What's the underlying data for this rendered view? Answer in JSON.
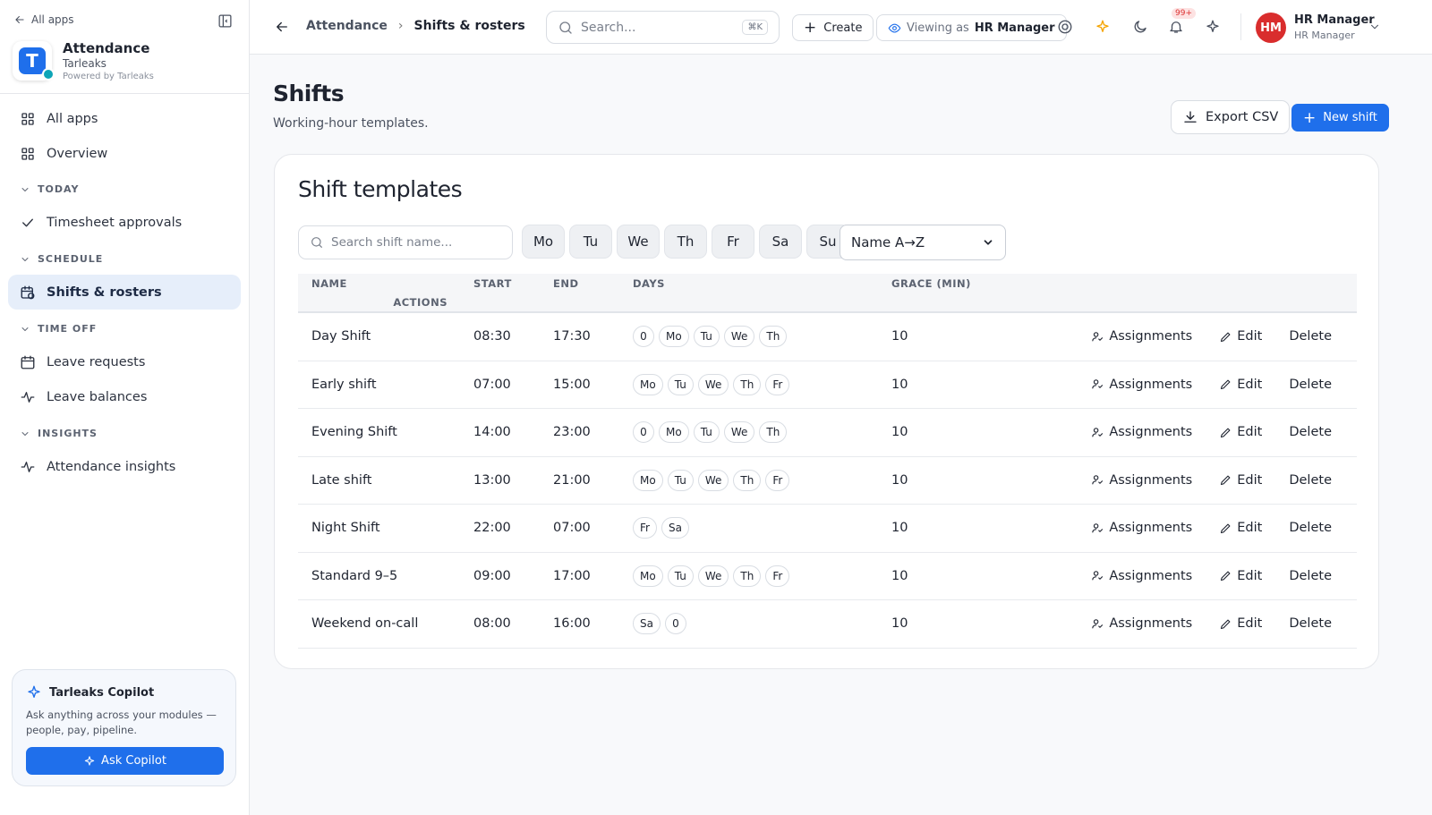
{
  "sidebar": {
    "back": "All apps",
    "app": {
      "name": "Attendance",
      "org": "Tarleaks",
      "powered": "Powered by Tarleaks"
    },
    "nav": [
      "All apps",
      "Overview"
    ],
    "sections": [
      {
        "title": "TODAY",
        "items": [
          "Timesheet approvals"
        ]
      },
      {
        "title": "SCHEDULE",
        "items": [
          "Shifts & rosters"
        ]
      },
      {
        "title": "TIME OFF",
        "items": [
          "Leave requests",
          "Leave balances"
        ]
      },
      {
        "title": "INSIGHTS",
        "items": [
          "Attendance insights"
        ]
      }
    ],
    "copilot": {
      "title": "Tarleaks Copilot",
      "text": "Ask anything across your modules — people, pay, pipeline.",
      "button": "Ask Copilot"
    }
  },
  "topbar": {
    "breadcrumb": [
      "Attendance",
      "Shifts & rosters"
    ],
    "search": "Search...",
    "shortcut": "⌘K",
    "create": "Create",
    "viewing_label": "Viewing as",
    "viewing_role": "HR Manager",
    "notifications": "99+",
    "user": {
      "initials": "HM",
      "name": "HR Manager",
      "role": "HR Manager"
    }
  },
  "page": {
    "title": "Shifts",
    "subtitle": "Working-hour templates.",
    "export": "Export CSV",
    "new": "New shift"
  },
  "card": {
    "title": "Shift templates",
    "search": "Search shift name...",
    "day_filters": [
      "Mo",
      "Tu",
      "We",
      "Th",
      "Fr",
      "Sa",
      "Su"
    ],
    "sort": "Name A→Z",
    "columns": [
      "NAME",
      "START",
      "END",
      "DAYS",
      "GRACE (MIN)",
      "ACTIONS"
    ],
    "actions": [
      "Assignments",
      "Edit",
      "Delete"
    ],
    "rows": [
      {
        "name": "Day Shift",
        "start": "08:30",
        "end": "17:30",
        "days": [
          "0",
          "Mo",
          "Tu",
          "We",
          "Th"
        ],
        "grace": 10
      },
      {
        "name": "Early shift",
        "start": "07:00",
        "end": "15:00",
        "days": [
          "Mo",
          "Tu",
          "We",
          "Th",
          "Fr"
        ],
        "grace": 10
      },
      {
        "name": "Evening Shift",
        "start": "14:00",
        "end": "23:00",
        "days": [
          "0",
          "Mo",
          "Tu",
          "We",
          "Th"
        ],
        "grace": 10
      },
      {
        "name": "Late shift",
        "start": "13:00",
        "end": "21:00",
        "days": [
          "Mo",
          "Tu",
          "We",
          "Th",
          "Fr"
        ],
        "grace": 10
      },
      {
        "name": "Night Shift",
        "start": "22:00",
        "end": "07:00",
        "days": [
          "Fr",
          "Sa"
        ],
        "grace": 10
      },
      {
        "name": "Standard 9–5",
        "start": "09:00",
        "end": "17:00",
        "days": [
          "Mo",
          "Tu",
          "We",
          "Th",
          "Fr"
        ],
        "grace": 10
      },
      {
        "name": "Weekend on-call",
        "start": "08:00",
        "end": "16:00",
        "days": [
          "Sa",
          "0"
        ],
        "grace": 10
      }
    ]
  }
}
